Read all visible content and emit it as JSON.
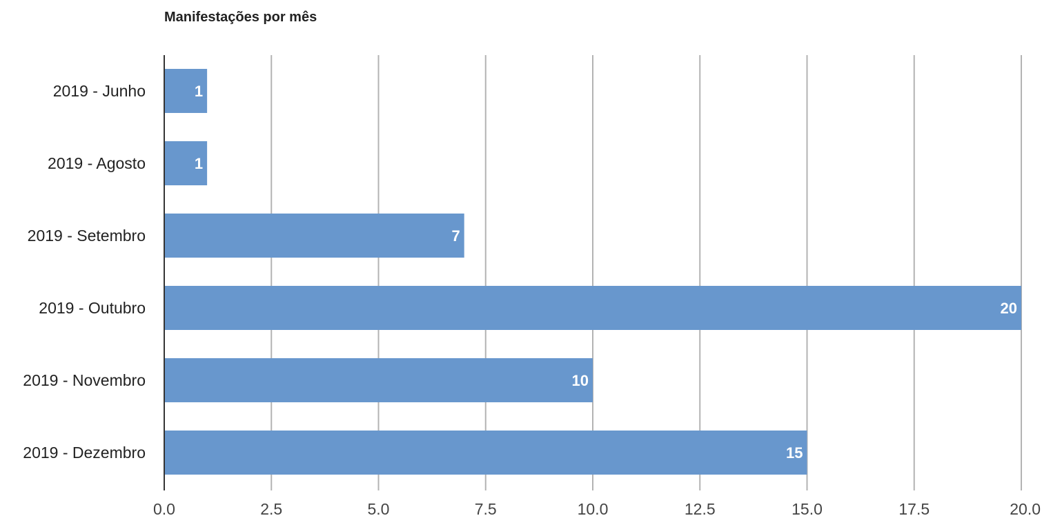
{
  "chart_data": {
    "type": "bar",
    "orientation": "horizontal",
    "title": "Manifestações por mês",
    "xlabel": "",
    "ylabel": "",
    "categories": [
      "2019 - Junho",
      "2019 - Agosto",
      "2019 - Setembro",
      "2019 - Outubro",
      "2019 - Novembro",
      "2019 - Dezembro"
    ],
    "values": [
      1,
      1,
      7,
      20,
      10,
      15
    ],
    "data_labels": [
      "1",
      "1",
      "7",
      "20",
      "10",
      "15"
    ],
    "xlim": [
      0,
      20
    ],
    "x_ticks": [
      "0.0",
      "2.5",
      "5.0",
      "7.5",
      "10.0",
      "12.5",
      "15.0",
      "17.5",
      "20.0"
    ],
    "grid": true,
    "legend": "none",
    "colors": {
      "bar": "#6897cd",
      "grid": "#b3b3b3",
      "baseline": "#333333",
      "data_label": "#ffffff"
    }
  }
}
